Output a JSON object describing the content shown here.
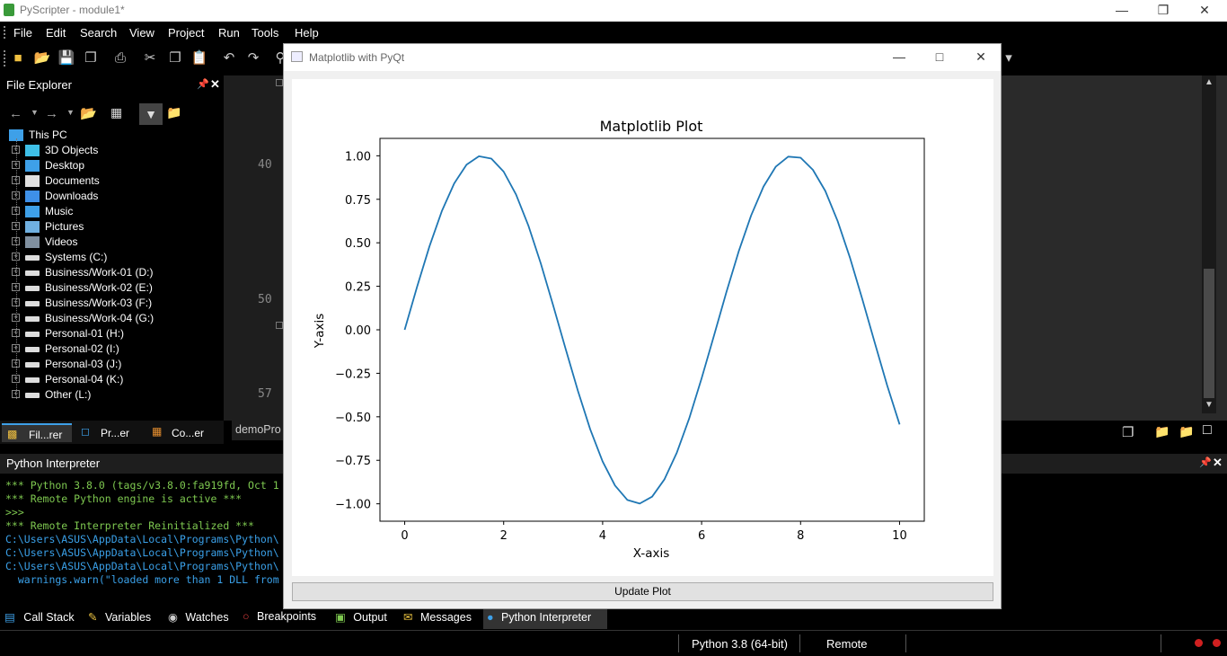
{
  "app": {
    "title": "PyScripter - module1*"
  },
  "menu": [
    "File",
    "Edit",
    "Search",
    "View",
    "Project",
    "Run",
    "Tools",
    "Help"
  ],
  "explorer": {
    "header": "File Explorer",
    "root": "This PC",
    "items": [
      "3D Objects",
      "Desktop",
      "Documents",
      "Downloads",
      "Music",
      "Pictures",
      "Videos",
      "Systems (C:)",
      "Business/Work-01 (D:)",
      "Business/Work-02 (E:)",
      "Business/Work-03 (F:)",
      "Business/Work-04 (G:)",
      "Personal-01 (H:)",
      "Personal-02 (I:)",
      "Personal-03 (J:)",
      "Personal-04 (K:)",
      "Other (L:)"
    ],
    "tabs": [
      "Fil...rer",
      "Pr...er",
      "Co...er"
    ]
  },
  "editor": {
    "line_numbers": [
      "40",
      "50",
      "57"
    ],
    "tab_label": "demoPro"
  },
  "interpreter": {
    "header": "Python Interpreter",
    "lines": [
      {
        "text": "*** Python 3.8.0 (tags/v3.8.0:fa919fd, Oct 1",
        "color": "#7ec850"
      },
      {
        "text": "*** Remote Python engine is active ***",
        "color": "#7ec850"
      },
      {
        "text": ">>>",
        "color": "#7ec850"
      },
      {
        "text": "*** Remote Interpreter Reinitialized ***",
        "color": "#7ec850"
      },
      {
        "text": "C:\\Users\\ASUS\\AppData\\Local\\Programs\\Python\\",
        "color": "#3aa0e8"
      },
      {
        "text": "C:\\Users\\ASUS\\AppData\\Local\\Programs\\Python\\",
        "color": "#3aa0e8"
      },
      {
        "text": "C:\\Users\\ASUS\\AppData\\Local\\Programs\\Python\\",
        "color": "#3aa0e8"
      },
      {
        "text": "  warnings.warn(\"loaded more than 1 DLL from",
        "color": "#3aa0e8"
      }
    ]
  },
  "bottom_tabs": [
    "Call Stack",
    "Variables",
    "Watches",
    "Breakpoints",
    "Output",
    "Messages",
    "Python Interpreter"
  ],
  "status": {
    "python_version": "Python 3.8 (64-bit)",
    "engine": "Remote"
  },
  "dialog": {
    "title": "Matplotlib with PyQt",
    "button": "Update Plot"
  },
  "chart_data": {
    "type": "line",
    "title": "Matplotlib Plot",
    "xlabel": "X-axis",
    "ylabel": "Y-axis",
    "xlim": [
      -0.5,
      10.5
    ],
    "ylim": [
      -1.1,
      1.1
    ],
    "xticks": [
      0,
      2,
      4,
      6,
      8,
      10
    ],
    "yticks": [
      1.0,
      0.75,
      0.5,
      0.25,
      0.0,
      -0.25,
      -0.5,
      -0.75,
      -1.0
    ],
    "ytick_labels": [
      "1.00",
      "0.75",
      "0.50",
      "0.25",
      "0.00",
      "−0.25",
      "−0.50",
      "−0.75",
      "−1.00"
    ],
    "series": [
      {
        "function": "sin(x)",
        "x": [
          0,
          0.25,
          0.5,
          0.75,
          1.0,
          1.25,
          1.5,
          1.75,
          2.0,
          2.25,
          2.5,
          2.75,
          3.0,
          3.25,
          3.5,
          3.75,
          4.0,
          4.25,
          4.5,
          4.75,
          5.0,
          5.25,
          5.5,
          5.75,
          6.0,
          6.25,
          6.5,
          6.75,
          7.0,
          7.25,
          7.5,
          7.75,
          8.0,
          8.25,
          8.5,
          8.75,
          9.0,
          9.25,
          9.5,
          9.75,
          10.0
        ],
        "y": [
          0.0,
          0.247,
          0.479,
          0.682,
          0.841,
          0.949,
          0.997,
          0.984,
          0.909,
          0.778,
          0.598,
          0.382,
          0.141,
          -0.108,
          -0.351,
          -0.572,
          -0.757,
          -0.895,
          -0.978,
          -0.999,
          -0.959,
          -0.859,
          -0.706,
          -0.509,
          -0.279,
          -0.033,
          0.215,
          0.451,
          0.657,
          0.823,
          0.938,
          0.995,
          0.989,
          0.919,
          0.798,
          0.624,
          0.412,
          0.174,
          -0.075,
          -0.32,
          -0.544
        ],
        "color": "#1f77b4"
      }
    ]
  },
  "colors": {
    "line": "#1f77b4",
    "interp_green": "#7ec850",
    "interp_blue": "#3aa0e8"
  }
}
